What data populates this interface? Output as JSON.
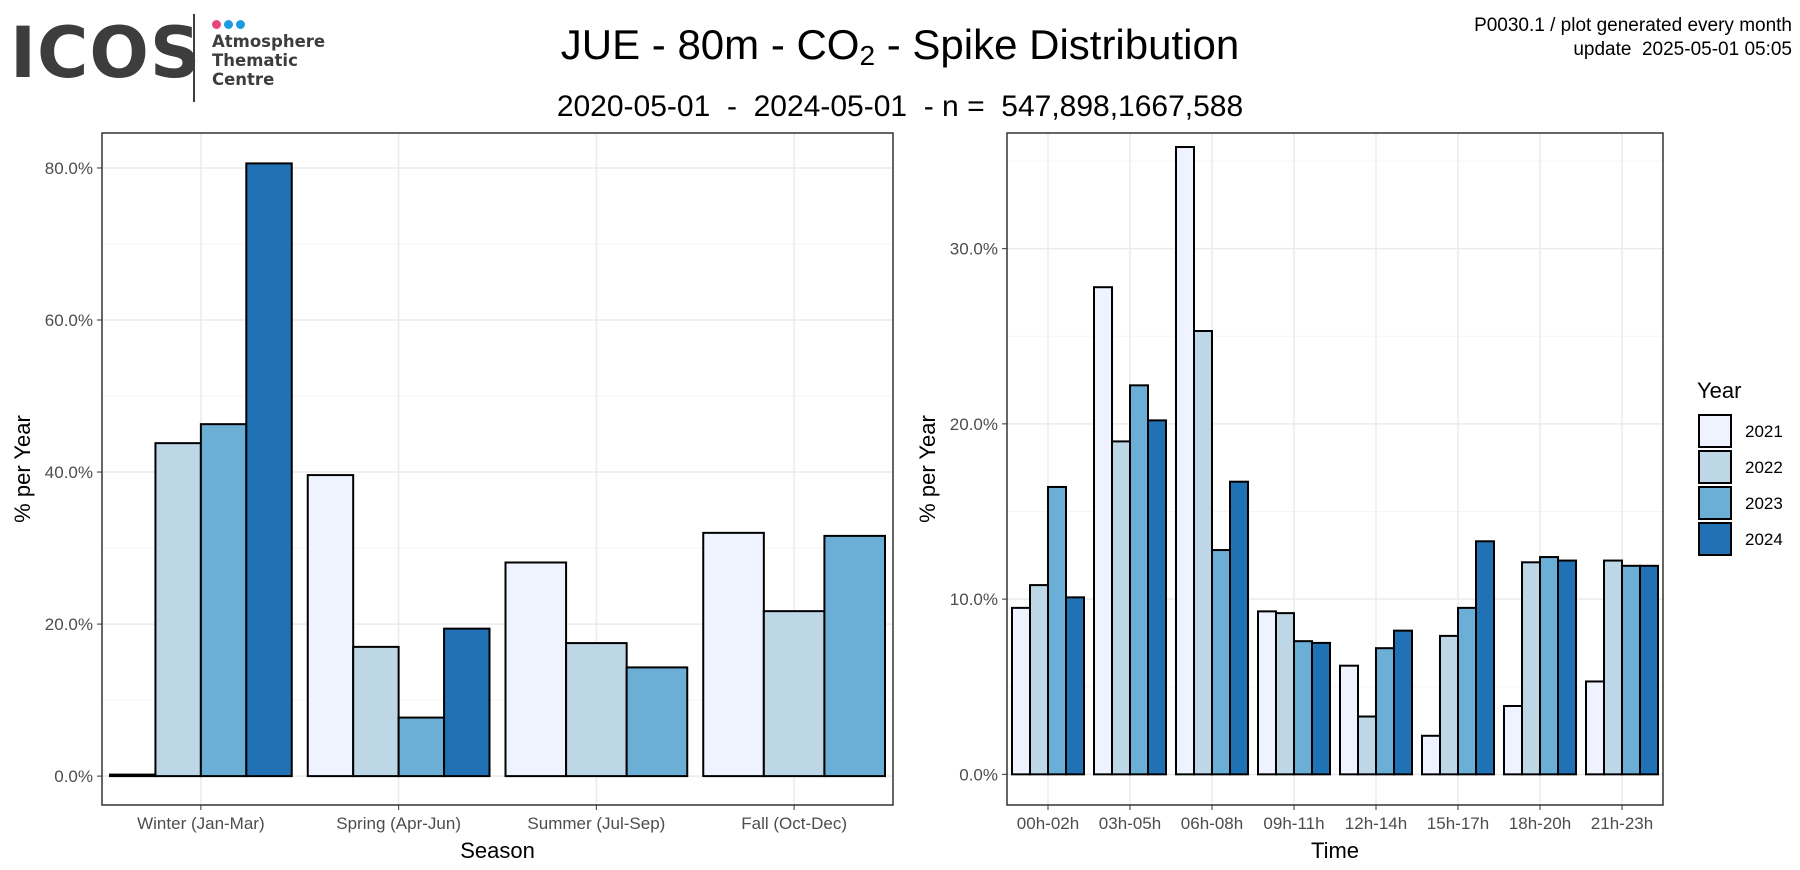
{
  "logo": {
    "word": "ICOS",
    "lines": [
      "Atmosphere",
      "Thematic",
      "Centre"
    ],
    "dot_colors": [
      "#e8457a",
      "#1e9be0",
      "#1e9be0"
    ]
  },
  "header": {
    "title_main": "JUE - 80m - CO",
    "title_sub": "2",
    "title_tail": " - Spike Distribution",
    "subtitle": "2020-05-01  -  2024-05-01  - n =  547,898,1667,588",
    "meta_line1": "P0030.1 / plot generated every month",
    "meta_line2": "update  2025-05-01 05:05"
  },
  "colors": {
    "2021": "#eff3ff",
    "2022": "#bdd7e7",
    "2023": "#6baed6",
    "2024": "#2171b5",
    "grid_major": "#ebebeb",
    "grid_minor": "#f5f5f5",
    "panel_border": "#333333"
  },
  "chart_data": [
    {
      "type": "bar",
      "panel": "left",
      "xlabel": "Season",
      "ylabel": "% per Year",
      "ylim": [
        -3.8,
        84.6
      ],
      "yticks": [
        0,
        20,
        40,
        60,
        80
      ],
      "ytick_labels": [
        "0.0%",
        "20.0%",
        "40.0%",
        "60.0%",
        "80.0%"
      ],
      "categories": [
        "Winter (Jan-Mar)",
        "Spring (Apr-Jun)",
        "Summer (Jul-Sep)",
        "Fall (Oct-Dec)"
      ],
      "series": [
        {
          "name": "2021",
          "values": [
            0.2,
            39.6,
            28.1,
            32.0
          ]
        },
        {
          "name": "2022",
          "values": [
            43.8,
            17.0,
            17.5,
            21.7
          ]
        },
        {
          "name": "2023",
          "values": [
            46.3,
            7.7,
            14.3,
            31.6
          ]
        },
        {
          "name": "2024",
          "values": [
            80.6,
            19.4,
            null,
            null
          ]
        }
      ]
    },
    {
      "type": "bar",
      "panel": "right",
      "xlabel": "Time",
      "ylabel": "% per Year",
      "ylim": [
        -1.75,
        36.6
      ],
      "yticks": [
        0,
        10,
        20,
        30
      ],
      "ytick_labels": [
        "0.0%",
        "10.0%",
        "20.0%",
        "30.0%"
      ],
      "categories": [
        "00h-02h",
        "03h-05h",
        "06h-08h",
        "09h-11h",
        "12h-14h",
        "15h-17h",
        "18h-20h",
        "21h-23h"
      ],
      "series": [
        {
          "name": "2021",
          "values": [
            9.5,
            27.8,
            35.8,
            9.3,
            6.2,
            2.2,
            3.9,
            5.3
          ]
        },
        {
          "name": "2022",
          "values": [
            10.8,
            19.0,
            25.3,
            9.2,
            3.3,
            7.9,
            12.1,
            12.2
          ]
        },
        {
          "name": "2023",
          "values": [
            16.4,
            22.2,
            12.8,
            7.6,
            7.2,
            9.5,
            12.4,
            11.9
          ]
        },
        {
          "name": "2024",
          "values": [
            10.1,
            20.2,
            16.7,
            7.5,
            8.2,
            13.3,
            12.2,
            11.9
          ]
        }
      ]
    }
  ],
  "legend": {
    "title": "Year",
    "items": [
      "2021",
      "2022",
      "2023",
      "2024"
    ],
    "placement": "right"
  }
}
